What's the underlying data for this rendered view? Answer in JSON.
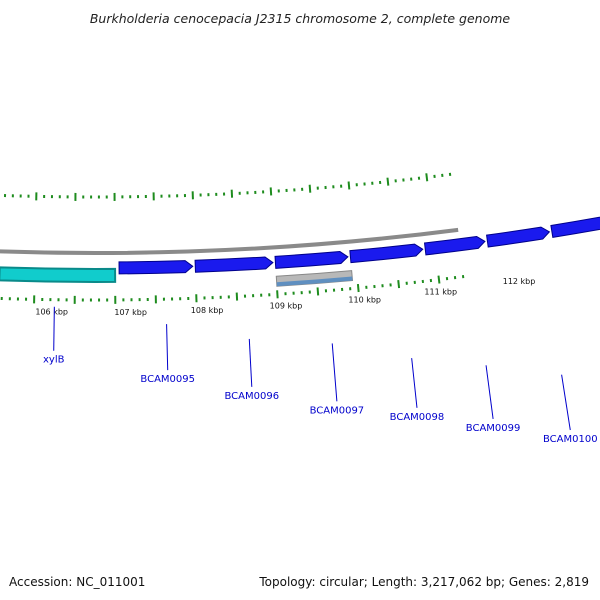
{
  "title": "Burkholderia cenocepacia J2315 chromosome 2, complete genome",
  "footer": {
    "accession": "Accession: NC_011001",
    "summary": "Topology: circular; Length: 3,217,062 bp; Genes: 2,819"
  },
  "colors": {
    "background": "#ffffff",
    "backbone": "#8a8a8a",
    "gene_forward": "#1a1aee",
    "gene_highlight": "#11cccc",
    "gene_pseudo": "#b8b8b8",
    "gene_pseudo_inner": "#5f8fc0",
    "tick": "#1e8c1e",
    "label": "#0000cc",
    "label_line": "#0000cc"
  },
  "scale_labels": [
    "106 kbp",
    "107 kbp",
    "108 kbp",
    "109 kbp",
    "110 kbp",
    "111 kbp",
    "112 kbp"
  ],
  "genes": [
    {
      "name": "xylB",
      "type": "highlight",
      "strand": "forward"
    },
    {
      "name": "",
      "type": "forward",
      "strand": "forward"
    },
    {
      "name": "BCAM0095",
      "type": "forward",
      "strand": "forward"
    },
    {
      "name": "BCAM0096",
      "type": "forward",
      "strand": "forward"
    },
    {
      "name": "BCAM0097",
      "type": "pseudo",
      "strand": "forward"
    },
    {
      "name": "BCAM0098",
      "type": "forward",
      "strand": "forward"
    },
    {
      "name": "BCAM0099",
      "type": "forward",
      "strand": "forward"
    },
    {
      "name": "BCAM0100",
      "type": "forward",
      "strand": "forward"
    }
  ]
}
